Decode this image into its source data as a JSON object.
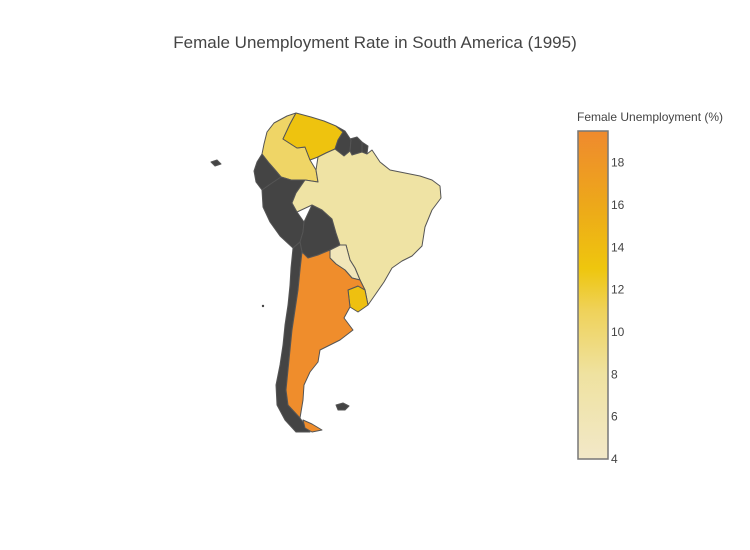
{
  "chart": {
    "title": "Female Unemployment Rate in South America (1995)",
    "colorbar": {
      "title": "Female Unemployment (%)",
      "min": 4,
      "max": 19.5,
      "ticks": [
        4,
        6,
        8,
        10,
        12,
        14,
        16,
        18
      ],
      "colorscale": [
        [
          4,
          "#f2e8c8"
        ],
        [
          8,
          "#efe2a0"
        ],
        [
          11,
          "#efd25a"
        ],
        [
          13,
          "#eec60e"
        ],
        [
          16,
          "#eda81a"
        ],
        [
          19.5,
          "#ef8a2e"
        ]
      ]
    },
    "no_data_color": "#444444",
    "regions": [
      {
        "name": "Venezuela",
        "value": 13.3
      },
      {
        "name": "Colombia",
        "value": 10.5
      },
      {
        "name": "Brazil",
        "value": 7.6
      },
      {
        "name": "Paraguay",
        "value": 5.4
      },
      {
        "name": "Uruguay",
        "value": 13.6
      },
      {
        "name": "Argentina",
        "value": 19.2
      },
      {
        "name": "Ecuador",
        "value": null
      },
      {
        "name": "Peru",
        "value": null
      },
      {
        "name": "Bolivia",
        "value": null
      },
      {
        "name": "Chile",
        "value": null
      },
      {
        "name": "Guyana",
        "value": null
      },
      {
        "name": "Suriname",
        "value": null
      },
      {
        "name": "French Guiana",
        "value": null
      },
      {
        "name": "Falkland Islands",
        "value": null
      },
      {
        "name": "Galapagos Islands",
        "value": null
      }
    ]
  }
}
